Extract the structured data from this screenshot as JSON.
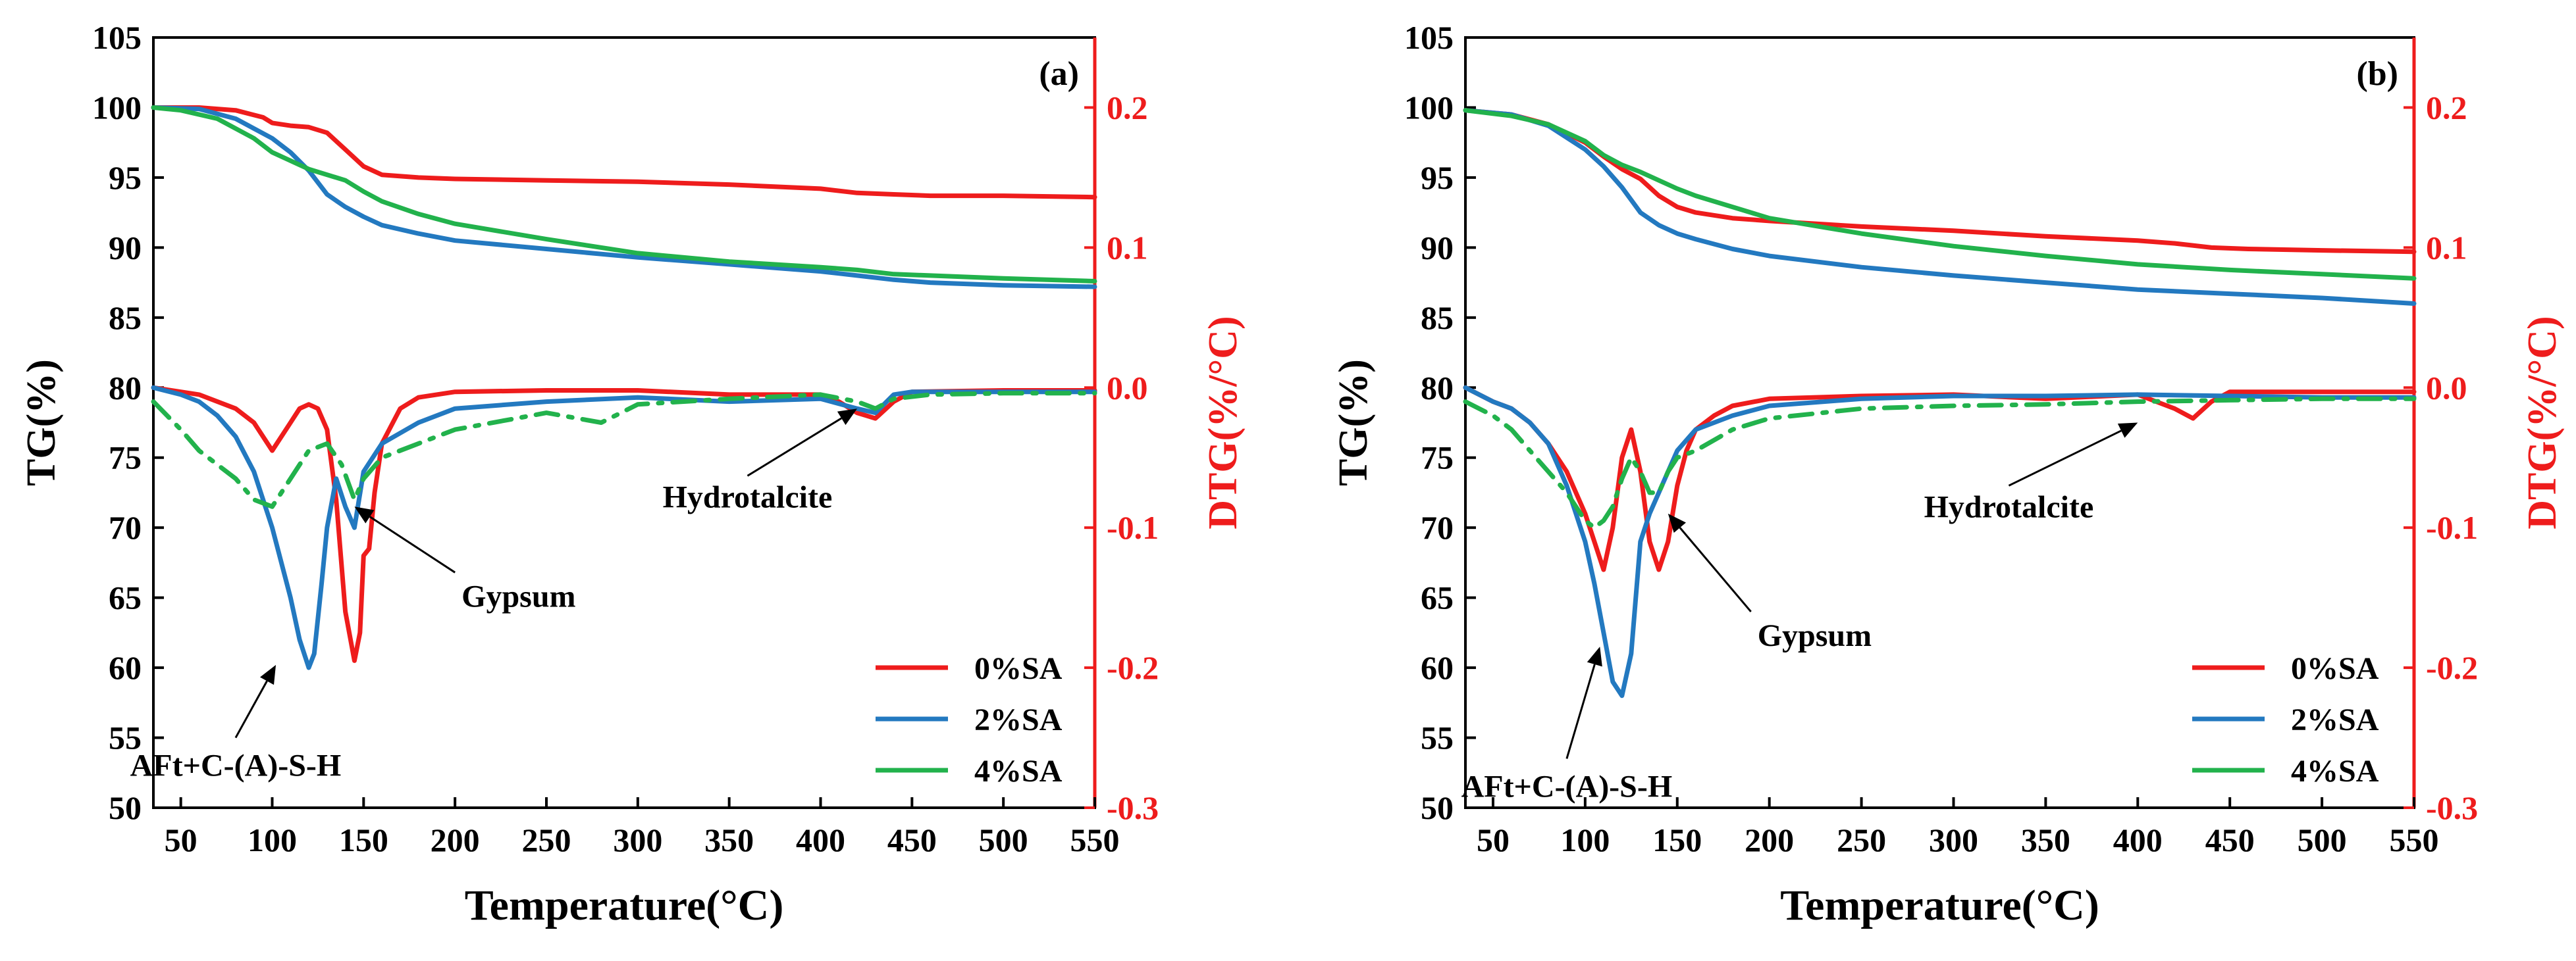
{
  "colors": {
    "series_0": "#ee1c1c",
    "series_2": "#2379c0",
    "series_4": "#22b24c",
    "right_axis": "#ee1c1c",
    "axis": "#000000",
    "background": "#ffffff"
  },
  "chart_data": [
    {
      "type": "line",
      "panel_label": "(a)",
      "xlabel": "Temperature(°C)",
      "ylabel_left": "TG(%)",
      "ylabel_right": "DTG(%/°C)",
      "xlim": [
        35,
        550
      ],
      "ylim_left": [
        50,
        105
      ],
      "ylim_right": [
        -0.3,
        0.25
      ],
      "x_ticks": [
        50,
        100,
        150,
        200,
        250,
        300,
        350,
        400,
        450,
        500,
        550
      ],
      "y_left_ticks": [
        50,
        55,
        60,
        65,
        70,
        75,
        80,
        85,
        90,
        95,
        100,
        105
      ],
      "y_right_ticks": [
        -0.3,
        -0.2,
        -0.1,
        0.0,
        0.1,
        0.2
      ],
      "y_right_tick_labels": [
        "-0.3",
        "-0.2",
        "-0.1",
        "0.0",
        "0.1",
        "0.2"
      ],
      "grid": false,
      "legend_position": "bottom-right",
      "annotations": [
        {
          "text": "Hydrotalcite",
          "point": [
            420,
            -0.015
          ],
          "label": [
            360,
            -0.063
          ]
        },
        {
          "text": "Gypsum",
          "point": [
            145,
            -0.085
          ],
          "label": [
            200,
            -0.132
          ]
        },
        {
          "text": "AFt+C-(A)-S-H",
          "point": [
            102,
            -0.198
          ],
          "label": [
            80,
            -0.25
          ]
        }
      ],
      "series": [
        {
          "name": "0%SA",
          "color_key": "series_0",
          "line": "solid",
          "axis": "left",
          "x": [
            35,
            60,
            80,
            95,
            100,
            110,
            120,
            130,
            140,
            150,
            160,
            180,
            200,
            250,
            300,
            350,
            400,
            420,
            440,
            460,
            500,
            550
          ],
          "y": [
            100,
            100,
            99.8,
            99.3,
            98.9,
            98.7,
            98.6,
            98.2,
            97.0,
            95.8,
            95.2,
            95.0,
            94.9,
            94.8,
            94.7,
            94.5,
            94.2,
            93.9,
            93.8,
            93.7,
            93.7,
            93.6
          ]
        },
        {
          "name": "2%SA",
          "color_key": "series_2",
          "line": "solid",
          "axis": "left",
          "x": [
            35,
            60,
            80,
            100,
            110,
            120,
            130,
            140,
            150,
            160,
            180,
            200,
            250,
            300,
            350,
            400,
            420,
            440,
            460,
            500,
            550
          ],
          "y": [
            100,
            99.9,
            99.2,
            97.8,
            96.8,
            95.5,
            93.8,
            92.9,
            92.2,
            91.6,
            91.0,
            90.5,
            89.9,
            89.3,
            88.8,
            88.3,
            88.0,
            87.7,
            87.5,
            87.3,
            87.2
          ]
        },
        {
          "name": "4%SA",
          "color_key": "series_4",
          "line": "solid",
          "axis": "left",
          "x": [
            35,
            50,
            70,
            90,
            100,
            120,
            140,
            150,
            160,
            180,
            200,
            250,
            300,
            350,
            400,
            420,
            440,
            460,
            500,
            550
          ],
          "y": [
            100,
            99.8,
            99.2,
            97.8,
            96.8,
            95.6,
            94.8,
            94.0,
            93.3,
            92.4,
            91.7,
            90.6,
            89.6,
            89.0,
            88.6,
            88.4,
            88.1,
            88.0,
            87.8,
            87.6
          ]
        },
        {
          "name": "0%SA",
          "color_key": "series_0",
          "line": "solid",
          "axis": "right",
          "x": [
            35,
            60,
            80,
            90,
            100,
            110,
            115,
            120,
            125,
            130,
            135,
            140,
            145,
            148,
            150,
            153,
            156,
            160,
            170,
            180,
            200,
            250,
            300,
            350,
            400,
            410,
            420,
            430,
            440,
            450,
            500,
            550
          ],
          "y": [
            0.0,
            -0.005,
            -0.015,
            -0.025,
            -0.045,
            -0.025,
            -0.015,
            -0.012,
            -0.015,
            -0.03,
            -0.08,
            -0.16,
            -0.195,
            -0.175,
            -0.12,
            -0.115,
            -0.075,
            -0.04,
            -0.015,
            -0.007,
            -0.003,
            -0.002,
            -0.002,
            -0.005,
            -0.005,
            -0.01,
            -0.018,
            -0.022,
            -0.01,
            -0.003,
            -0.002,
            -0.002
          ]
        },
        {
          "name": "2%SA",
          "color_key": "series_2",
          "line": "solid",
          "axis": "right",
          "x": [
            35,
            50,
            60,
            70,
            80,
            90,
            100,
            110,
            115,
            120,
            123,
            127,
            130,
            135,
            140,
            145,
            150,
            160,
            180,
            200,
            250,
            300,
            350,
            400,
            420,
            430,
            440,
            450,
            500,
            550
          ],
          "y": [
            0.0,
            -0.005,
            -0.01,
            -0.02,
            -0.035,
            -0.06,
            -0.1,
            -0.15,
            -0.18,
            -0.2,
            -0.19,
            -0.14,
            -0.1,
            -0.065,
            -0.085,
            -0.1,
            -0.06,
            -0.04,
            -0.025,
            -0.015,
            -0.01,
            -0.007,
            -0.01,
            -0.008,
            -0.015,
            -0.018,
            -0.005,
            -0.003,
            -0.003,
            -0.003
          ]
        },
        {
          "name": "4%SA",
          "color_key": "series_4",
          "line": "dash-dot",
          "axis": "right",
          "x": [
            35,
            50,
            60,
            70,
            80,
            90,
            100,
            110,
            120,
            130,
            138,
            145,
            150,
            160,
            180,
            200,
            250,
            280,
            300,
            350,
            400,
            420,
            430,
            440,
            460,
            500,
            550
          ],
          "y": [
            -0.01,
            -0.03,
            -0.045,
            -0.055,
            -0.065,
            -0.08,
            -0.085,
            -0.065,
            -0.045,
            -0.04,
            -0.055,
            -0.08,
            -0.065,
            -0.05,
            -0.04,
            -0.03,
            -0.018,
            -0.025,
            -0.012,
            -0.008,
            -0.005,
            -0.01,
            -0.015,
            -0.008,
            -0.005,
            -0.004,
            -0.004
          ]
        }
      ]
    },
    {
      "type": "line",
      "panel_label": "(b)",
      "xlabel": "Temperature(°C)",
      "ylabel_left": "TG(%)",
      "ylabel_right": "DTG(%/°C)",
      "xlim": [
        35,
        550
      ],
      "ylim_left": [
        50,
        105
      ],
      "ylim_right": [
        -0.3,
        0.25
      ],
      "x_ticks": [
        50,
        100,
        150,
        200,
        250,
        300,
        350,
        400,
        450,
        500,
        550
      ],
      "y_left_ticks": [
        50,
        55,
        60,
        65,
        70,
        75,
        80,
        85,
        90,
        95,
        100,
        105
      ],
      "y_right_ticks": [
        -0.3,
        -0.2,
        -0.1,
        0.0,
        0.1,
        0.2
      ],
      "y_right_tick_labels": [
        "-0.3",
        "-0.2",
        "-0.1",
        "0.0",
        "0.1",
        "0.2"
      ],
      "grid": false,
      "legend_position": "bottom-right",
      "annotations": [
        {
          "text": "Hydrotalcite",
          "point": [
            400,
            -0.025
          ],
          "label": [
            330,
            -0.07
          ]
        },
        {
          "text": "Gypsum",
          "point": [
            145,
            -0.09
          ],
          "label": [
            190,
            -0.16
          ]
        },
        {
          "text": "AFt+C-(A)-S-H",
          "point": [
            108,
            -0.185
          ],
          "label": [
            90,
            -0.265
          ]
        }
      ],
      "series": [
        {
          "name": "0%SA",
          "color_key": "series_0",
          "line": "solid",
          "axis": "left",
          "x": [
            35,
            60,
            80,
            100,
            110,
            120,
            130,
            140,
            150,
            160,
            180,
            200,
            250,
            300,
            350,
            400,
            420,
            440,
            460,
            500,
            550
          ],
          "y": [
            99.8,
            99.5,
            98.8,
            97.5,
            96.5,
            95.6,
            94.9,
            93.7,
            92.9,
            92.5,
            92.1,
            91.9,
            91.5,
            91.2,
            90.8,
            90.5,
            90.3,
            90.0,
            89.9,
            89.8,
            89.7
          ]
        },
        {
          "name": "2%SA",
          "color_key": "series_2",
          "line": "solid",
          "axis": "left",
          "x": [
            35,
            60,
            80,
            100,
            110,
            120,
            130,
            140,
            150,
            160,
            180,
            200,
            250,
            300,
            350,
            400,
            450,
            500,
            550
          ],
          "y": [
            99.8,
            99.5,
            98.7,
            97.0,
            95.8,
            94.3,
            92.5,
            91.6,
            91.0,
            90.6,
            89.9,
            89.4,
            88.6,
            88.0,
            87.5,
            87.0,
            86.7,
            86.4,
            86.0
          ]
        },
        {
          "name": "4%SA",
          "color_key": "series_4",
          "line": "solid",
          "axis": "left",
          "x": [
            35,
            60,
            80,
            100,
            110,
            120,
            130,
            140,
            150,
            160,
            180,
            200,
            250,
            300,
            350,
            400,
            450,
            500,
            550
          ],
          "y": [
            99.8,
            99.4,
            98.8,
            97.6,
            96.6,
            95.9,
            95.4,
            94.8,
            94.2,
            93.7,
            92.9,
            92.1,
            91.0,
            90.1,
            89.4,
            88.8,
            88.4,
            88.1,
            87.8
          ]
        },
        {
          "name": "0%SA",
          "color_key": "series_0",
          "line": "solid",
          "axis": "right",
          "x": [
            35,
            50,
            60,
            70,
            80,
            90,
            100,
            105,
            110,
            115,
            120,
            125,
            130,
            135,
            140,
            145,
            150,
            155,
            160,
            170,
            180,
            200,
            250,
            300,
            350,
            400,
            420,
            430,
            440,
            450,
            500,
            550
          ],
          "y": [
            0.0,
            -0.01,
            -0.015,
            -0.025,
            -0.04,
            -0.06,
            -0.09,
            -0.11,
            -0.13,
            -0.1,
            -0.05,
            -0.03,
            -0.06,
            -0.11,
            -0.13,
            -0.11,
            -0.07,
            -0.045,
            -0.03,
            -0.02,
            -0.013,
            -0.008,
            -0.006,
            -0.005,
            -0.008,
            -0.005,
            -0.015,
            -0.022,
            -0.01,
            -0.003,
            -0.003,
            -0.003
          ]
        },
        {
          "name": "2%SA",
          "color_key": "series_2",
          "line": "solid",
          "axis": "right",
          "x": [
            35,
            50,
            60,
            70,
            80,
            90,
            100,
            105,
            110,
            115,
            120,
            125,
            130,
            135,
            140,
            145,
            150,
            160,
            180,
            200,
            250,
            300,
            350,
            400,
            450,
            500,
            550
          ],
          "y": [
            0.0,
            -0.01,
            -0.015,
            -0.025,
            -0.04,
            -0.07,
            -0.11,
            -0.14,
            -0.175,
            -0.21,
            -0.22,
            -0.19,
            -0.11,
            -0.09,
            -0.075,
            -0.06,
            -0.045,
            -0.03,
            -0.02,
            -0.013,
            -0.008,
            -0.006,
            -0.006,
            -0.005,
            -0.006,
            -0.007,
            -0.007
          ]
        },
        {
          "name": "4%SA",
          "color_key": "series_4",
          "line": "dash-dot",
          "axis": "right",
          "x": [
            35,
            50,
            60,
            70,
            80,
            90,
            100,
            105,
            110,
            115,
            120,
            125,
            130,
            135,
            140,
            145,
            150,
            160,
            180,
            200,
            250,
            300,
            350,
            400,
            450,
            500,
            550
          ],
          "y": [
            -0.01,
            -0.02,
            -0.03,
            -0.045,
            -0.06,
            -0.075,
            -0.095,
            -0.1,
            -0.095,
            -0.085,
            -0.065,
            -0.05,
            -0.06,
            -0.075,
            -0.075,
            -0.06,
            -0.05,
            -0.045,
            -0.03,
            -0.022,
            -0.015,
            -0.013,
            -0.012,
            -0.01,
            -0.009,
            -0.008,
            -0.008
          ]
        }
      ]
    }
  ]
}
